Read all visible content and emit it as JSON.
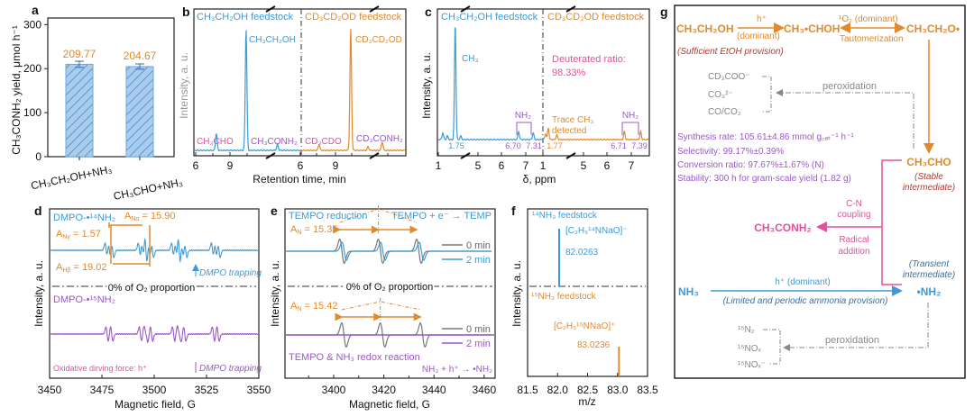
{
  "colors": {
    "blue": "#3c9bd6",
    "orange": "#e08a2e",
    "purple": "#9b59c6",
    "pink": "#e0529b",
    "grey": "#7a7a7a",
    "darkred": "#b03a2e"
  },
  "chart_data": [
    {
      "panel": "a",
      "type": "bar",
      "categories": [
        "CH₃CH₂OH+NH₃",
        "CH₃CHO+NH₃"
      ],
      "values": [
        209.77,
        204.67
      ],
      "errors": [
        7,
        6
      ],
      "value_labels": [
        "209.77",
        "204.67"
      ],
      "ylabel": "CH₃CONH₂ yield, μmol h⁻¹",
      "ylim": [
        0,
        315
      ],
      "yticks": [
        0,
        100,
        200,
        300
      ]
    },
    {
      "panel": "b",
      "type": "line",
      "xlabel": "Retention time, min",
      "ylabel": "Intensity, a. u.",
      "xtick_labels": [
        "6",
        "9",
        "6",
        "9"
      ],
      "series": [
        {
          "name": "CH₃CH₂OH feedstock",
          "peaks": [
            {
              "x": 7.8,
              "h": 0.14
            },
            {
              "x": 10.4,
              "h": 1.0
            },
            {
              "x": 13.6,
              "h": 0.05
            }
          ]
        },
        {
          "name": "CD₃CD₂OD feedstock",
          "peaks": [
            {
              "x": 7.6,
              "h": 0.05
            },
            {
              "x": 10.3,
              "h": 1.0
            },
            {
              "x": 12.2,
              "h": 0.03
            },
            {
              "x": 13.5,
              "h": 0.07
            }
          ]
        }
      ],
      "annotations": [
        "CH₃CH₂OH",
        "CH₃CHO",
        "CH₃CONH₂",
        "CD₃CD₂OD",
        "CD₃CDO",
        "CD₃CONH₂"
      ]
    },
    {
      "panel": "c",
      "type": "line",
      "xlabel": "δ, ppm",
      "ylabel": "Intensity, a. u.",
      "xtick_labels": [
        "1",
        "5",
        "6",
        "7",
        "1",
        "5",
        "6",
        "7"
      ],
      "series": [
        {
          "name": "CH₃CH₂OH feedstock",
          "peaks": [
            {
              "x": 1.2,
              "h": 0.06
            },
            {
              "x": 1.4,
              "h": 0.03
            },
            {
              "x": 1.75,
              "h": 1.0
            },
            {
              "x": 2.0,
              "h": 0.03
            },
            {
              "x": 6.7,
              "h": 0.07
            },
            {
              "x": 7.31,
              "h": 0.06
            }
          ]
        },
        {
          "name": "CD₃CD₂OD feedstock",
          "peaks": [
            {
              "x": 1.15,
              "h": 0.05
            },
            {
              "x": 1.3,
              "h": 0.1
            },
            {
              "x": 1.77,
              "h": 0.04
            },
            {
              "x": 6.71,
              "h": 0.07
            },
            {
              "x": 7.39,
              "h": 0.07
            }
          ]
        }
      ],
      "peak_labels": [
        "1.75",
        "6.70",
        "7.31",
        "1.77",
        "6.71",
        "7.39"
      ],
      "annotations": [
        "CH₃",
        "NH₂",
        "Deuterated ratio:",
        "98.33%",
        "Trace CH₃",
        "detected",
        "NH₂"
      ]
    },
    {
      "panel": "d",
      "type": "line",
      "xlabel": "Magnetic field, G",
      "ylabel": "Intensity, a. u.",
      "xlim": [
        3450,
        3550
      ],
      "xticks": [
        3450,
        3475,
        3500,
        3525,
        3550
      ],
      "series": [
        {
          "name": "DMPO-•¹⁴NH₂",
          "center": 3504,
          "aN": 15.9,
          "aH": 19.02,
          "aN2": 1.57,
          "n2_mult": 3
        },
        {
          "name": "DMPO-•¹⁵NH₂",
          "center": 3504,
          "aN": 15.9,
          "aH": 19.02,
          "aN2": 2.2,
          "n2_mult": 2
        }
      ],
      "annotations": {
        "aN": "A",
        "aN_sub": "Nα",
        "aN_val": " = 15.90",
        "aNg": "A",
        "aNg_sub": "Nγ",
        "aNg_val": " = 1.57",
        "aH": "A",
        "aH_sub": "Hβ",
        "aH_val": " = 19.02",
        "trap1": "DMPO trapping",
        "divider": "0% of O₂ proportion",
        "force": "Oxidative dirving force: h⁺",
        "trap2": "DMPO trapping"
      }
    },
    {
      "panel": "e",
      "type": "line",
      "xlabel": "Magnetic field, G",
      "ylabel": "Intensity, a. u.",
      "xlim": [
        3380,
        3465
      ],
      "xticks": [
        3400,
        3420,
        3440,
        3460
      ],
      "legend": [
        "0 min",
        "2 min"
      ],
      "series": [
        {
          "name": "top 0 min",
          "centers": [
            3403.3,
            3418.7,
            3434.0
          ],
          "amp": 1.0
        },
        {
          "name": "top 2 min",
          "centers": [
            3404.2,
            3419.6,
            3435.0
          ],
          "amp": 0.75
        },
        {
          "name": "bottom 0 min",
          "centers": [
            3404.1,
            3419.5,
            3435.5
          ],
          "amp": 1.0
        },
        {
          "name": "bottom 2 min",
          "centers": [],
          "amp": 0
        }
      ],
      "annotations": {
        "title_left": "TEMPO reduction",
        "title_right": "TEMPO + e⁻ → TEMP",
        "aN_top": "A",
        "aN_top_sub": "N",
        "aN_top_val": " = 15.35",
        "divider": "0% of O₂ proportion",
        "aN_bot": "A",
        "aN_bot_sub": "N",
        "aN_bot_val": " = 15.42",
        "bottom_left": "TEMPO & NH₃ redox reaction",
        "bottom_right": "NH₃ + h⁺ → •NH₂"
      }
    },
    {
      "panel": "f",
      "type": "bar",
      "xlabel": "m/z",
      "ylabel": "Intensity, a. u.",
      "xlim": [
        81.5,
        83.5
      ],
      "xticks": [
        "81.5",
        "82.0",
        "82.5",
        "83.0",
        "83.5"
      ],
      "series": [
        {
          "name": "¹⁴NH₃ feedstock",
          "ion": "[C₂H₅¹⁴NNaO]⁻",
          "mz": 82.0263,
          "label": "82.0263",
          "h": 1.0
        },
        {
          "name": "¹⁵NH₃ feedstock",
          "ion": "[C₂H₅¹⁵NNaO]⁺",
          "mz": 83.0236,
          "label": "83.0236",
          "h": 0.5
        }
      ]
    }
  ],
  "scheme": {
    "label": "g",
    "ethanol": "CH₃CH₂OH",
    "h_plus": "h⁺",
    "dominant": "(dominant)",
    "radical1": "CH₃•CHOH",
    "singlet_o2": "¹O₂ (dominant)",
    "tautomerization": "Tautomerization",
    "radical2": "CH₃CH₂O•",
    "ethanol_note": "(Sufficient EtOH provision)",
    "byproducts1": [
      "CD₃COO⁻",
      "CO₃²⁻",
      "CO/CO₂"
    ],
    "peroxidation": "peroxidation",
    "stats": [
      "Synthesis rate: 105.61±4.86 mmol g꜀ₐₜ⁻¹ h⁻¹",
      "Selectivity: 99.17%±0.39%",
      "Conversion ratio: 97.67%±1.67% (N)",
      "Stability: 300 h for gram-scale yield (1.82 g)"
    ],
    "acetaldehyde": "CH₃CHO",
    "stable1": "(Stable",
    "stable2": "intermediate)",
    "cn1": "C-N",
    "cn2": "coupling",
    "product": "CH₃CONH₂",
    "rad1": "Radical",
    "rad2": "addition",
    "transient1": "(Transient",
    "transient2": "intermediate)",
    "ammonia": "NH₃",
    "h_plus_dom": "h⁺ (dominant)",
    "ammonia_note": "(Limited and periodic ammonia provision)",
    "nh2": "•NH₂",
    "byproducts2": [
      "¹⁵N₂",
      "¹⁵NOₓ",
      "¹⁵NOₓ⁻"
    ]
  },
  "panel_labels": [
    "a",
    "b",
    "c",
    "d",
    "e",
    "f"
  ]
}
